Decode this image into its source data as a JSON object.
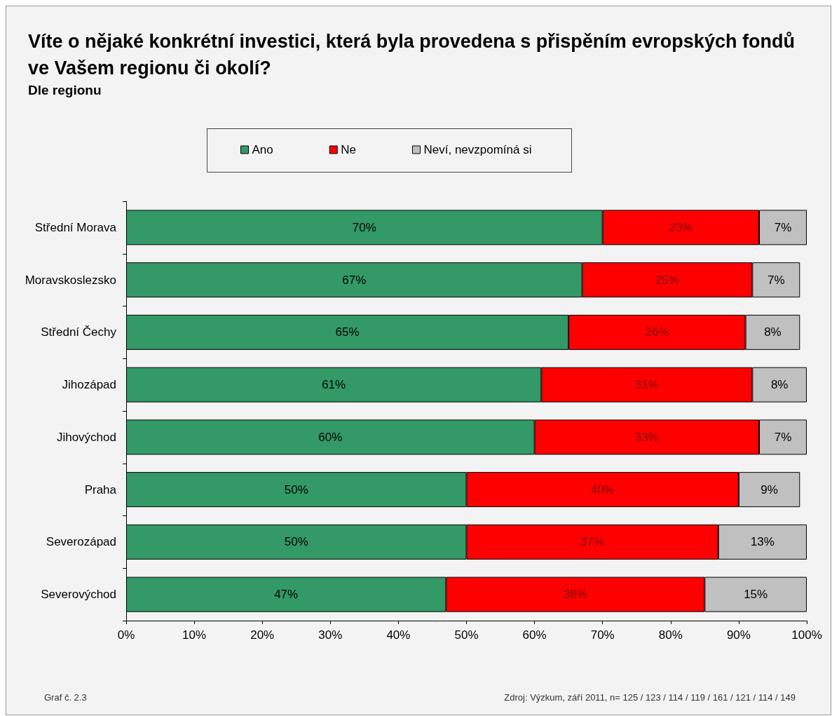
{
  "chart_data": {
    "type": "bar",
    "orientation": "horizontal",
    "stacked": true,
    "title": "Víte o nějaké konkrétní investici, která byla provedena s přispěním evropských fondů ve Vašem regionu či okolí?",
    "subtitle": "Dle regionu",
    "categories": [
      "Střední Morava",
      "Moravskoslezsko",
      "Střední Čechy",
      "Jihozápad",
      "Jihovýchod",
      "Praha",
      "Severozápad",
      "Severovýchod"
    ],
    "series": [
      {
        "name": "Ano",
        "color": "#339966",
        "values": [
          70,
          67,
          65,
          61,
          60,
          50,
          50,
          47
        ],
        "value_labels": [
          "70%",
          "67%",
          "65%",
          "61%",
          "60%",
          "50%",
          "50%",
          "47%"
        ]
      },
      {
        "name": "Ne",
        "color": "#ff0000",
        "values": [
          23,
          25,
          26,
          31,
          33,
          40,
          37,
          38
        ],
        "value_labels": [
          "23%",
          "25%",
          "26%",
          "31%",
          "33%",
          "40%",
          "37%",
          "38%"
        ]
      },
      {
        "name": "Neví, nevzpomíná si",
        "color": "#c0c0c0",
        "values": [
          7,
          7,
          8,
          8,
          7,
          9,
          13,
          15
        ],
        "value_labels": [
          "7%",
          "7%",
          "8%",
          "8%",
          "7%",
          "9%",
          "13%",
          "15%"
        ]
      }
    ],
    "xlim": [
      0,
      100
    ],
    "xticks": [
      {
        "value": 0,
        "label": "0%"
      },
      {
        "value": 10,
        "label": "10%"
      },
      {
        "value": 20,
        "label": "20%"
      },
      {
        "value": 30,
        "label": "30%"
      },
      {
        "value": 40,
        "label": "40%"
      },
      {
        "value": 50,
        "label": "50%"
      },
      {
        "value": 60,
        "label": "60%"
      },
      {
        "value": 70,
        "label": "70%"
      },
      {
        "value": 80,
        "label": "80%"
      },
      {
        "value": 90,
        "label": "90%"
      },
      {
        "value": 100,
        "label": "100%"
      }
    ],
    "grid": false,
    "legend": "top",
    "annotations": [
      "Graf č. 2.3",
      "Zdroj: Výzkum, září 2011, n= 125 / 123 / 114 / 119 / 161 / 121 / 114 / 149"
    ]
  }
}
